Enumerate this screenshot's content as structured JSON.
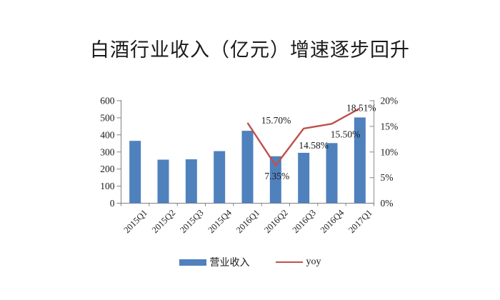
{
  "title": "白酒行业收入（亿元）增速逐步回升",
  "legend": {
    "bar_label": "营业收入",
    "line_label": "yoy"
  },
  "colors": {
    "bar": "#4F81BD",
    "line": "#C0504D",
    "axis": "#808080",
    "right_axis": "#9b9b9b",
    "text": "#1a1a1a"
  },
  "chart_data": {
    "type": "bar",
    "subtype": "combo-bar-line",
    "title": "白酒行业收入（亿元）增速逐步回升",
    "categories": [
      "2015Q1",
      "2015Q2",
      "2015Q3",
      "2015Q4",
      "2016Q1",
      "2016Q2",
      "2016Q3",
      "2016Q4",
      "2017Q1"
    ],
    "series": [
      {
        "name": "营业收入",
        "type": "bar",
        "axis": "left",
        "color": "#4F81BD",
        "values": [
          365,
          255,
          257,
          305,
          424,
          275,
          295,
          352,
          502
        ]
      },
      {
        "name": "yoy",
        "type": "line",
        "axis": "right",
        "color": "#C0504D",
        "values": [
          null,
          null,
          null,
          null,
          15.7,
          7.35,
          14.58,
          15.5,
          18.51
        ],
        "point_labels": [
          "15.70%",
          "7.35%",
          "14.58%",
          "15.50%",
          "18.51%"
        ]
      }
    ],
    "xlabel": "",
    "ylabel": "",
    "left_axis": {
      "min": 0,
      "max": 600,
      "step": 100,
      "tick_labels": [
        "0",
        "100",
        "200",
        "300",
        "400",
        "500",
        "600"
      ]
    },
    "right_axis": {
      "min": 0,
      "max": 20,
      "step": 5,
      "tick_labels": [
        "0%",
        "5%",
        "10%",
        "15%",
        "20%"
      ]
    },
    "grid": false,
    "legend_position": "bottom"
  }
}
